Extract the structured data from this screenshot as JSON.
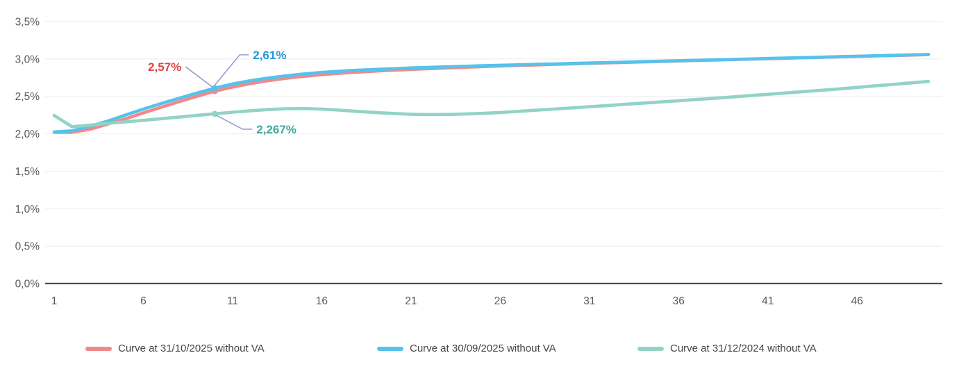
{
  "chart_data": {
    "type": "line",
    "title": "",
    "xlabel": "",
    "ylabel": "",
    "grid": "horizontal",
    "legend_position": "bottom",
    "ylim": [
      0,
      3.5
    ],
    "x": [
      1,
      2,
      3,
      4,
      5,
      6,
      7,
      8,
      9,
      10,
      11,
      12,
      13,
      14,
      15,
      16,
      17,
      18,
      19,
      20,
      21,
      22,
      23,
      24,
      25,
      26,
      27,
      28,
      29,
      30,
      31,
      32,
      33,
      34,
      35,
      36,
      37,
      38,
      39,
      40,
      41,
      42,
      43,
      44,
      45,
      46,
      47,
      48,
      49,
      50
    ],
    "x_ticks": [
      1,
      6,
      11,
      16,
      21,
      26,
      31,
      36,
      41,
      46
    ],
    "y_ticks": {
      "values": [
        0,
        0.5,
        1,
        1.5,
        2,
        2.5,
        3,
        3.5
      ],
      "labels": [
        "0,0%",
        "0,5%",
        "1,0%",
        "1,5%",
        "2,0%",
        "2,5%",
        "3,0%",
        "3,5%"
      ]
    },
    "series": [
      {
        "name": "Curve at 31/10/2025 without VA",
        "color": "#F08A8A",
        "values": [
          2.02,
          2.02,
          2.06,
          2.13,
          2.2,
          2.28,
          2.355,
          2.43,
          2.5,
          2.57,
          2.625,
          2.672,
          2.71,
          2.742,
          2.768,
          2.79,
          2.808,
          2.824,
          2.838,
          2.85,
          2.861,
          2.871,
          2.88,
          2.889,
          2.898,
          2.906,
          2.914,
          2.921,
          2.928,
          2.935,
          2.942,
          2.948,
          2.955,
          2.961,
          2.967,
          2.974,
          2.98,
          2.986,
          2.992,
          2.998,
          3.004,
          3.01,
          3.016,
          3.022,
          3.028,
          3.034,
          3.04,
          3.046,
          3.052,
          3.058
        ]
      },
      {
        "name": "Curve at 30/09/2025 without VA",
        "color": "#55C3EB",
        "values": [
          2.025,
          2.04,
          2.1,
          2.17,
          2.25,
          2.33,
          2.405,
          2.475,
          2.545,
          2.61,
          2.665,
          2.71,
          2.745,
          2.775,
          2.8,
          2.82,
          2.835,
          2.85,
          2.86,
          2.87,
          2.88,
          2.888,
          2.895,
          2.902,
          2.91,
          2.916,
          2.922,
          2.928,
          2.934,
          2.94,
          2.946,
          2.952,
          2.958,
          2.964,
          2.97,
          2.976,
          2.982,
          2.988,
          2.994,
          3.0,
          3.006,
          3.012,
          3.018,
          3.024,
          3.03,
          3.036,
          3.042,
          3.048,
          3.054,
          3.06
        ]
      },
      {
        "name": "Curve at 31/12/2024 without VA",
        "color": "#92D3C7",
        "values": [
          2.245,
          2.095,
          2.115,
          2.14,
          2.16,
          2.18,
          2.202,
          2.224,
          2.246,
          2.267,
          2.288,
          2.308,
          2.325,
          2.335,
          2.338,
          2.33,
          2.316,
          2.3,
          2.285,
          2.272,
          2.262,
          2.257,
          2.258,
          2.264,
          2.273,
          2.285,
          2.3,
          2.315,
          2.33,
          2.346,
          2.362,
          2.378,
          2.394,
          2.41,
          2.426,
          2.442,
          2.458,
          2.475,
          2.492,
          2.51,
          2.528,
          2.546,
          2.564,
          2.582,
          2.6,
          2.62,
          2.64,
          2.66,
          2.68,
          2.7
        ]
      }
    ],
    "annotations": [
      {
        "series_index": 0,
        "x": 10,
        "value": 2.57,
        "label": "2,57%",
        "text_color": "#E24444",
        "placement": "left-up"
      },
      {
        "series_index": 1,
        "x": 10,
        "value": 2.61,
        "label": "2,61%",
        "text_color": "#2199D6",
        "placement": "right-up"
      },
      {
        "series_index": 2,
        "x": 10,
        "value": 2.267,
        "label": "2,267%",
        "text_color": "#41A79E",
        "placement": "right-down"
      }
    ]
  },
  "styles": {
    "background": "#FFFFFF",
    "gridline_color": "#F1F1F1",
    "axis_color": "#4D4D4D",
    "tick_label_color": "#595959",
    "leader_line_color": "#9B9BD0",
    "legend_text_color": "#444444"
  }
}
